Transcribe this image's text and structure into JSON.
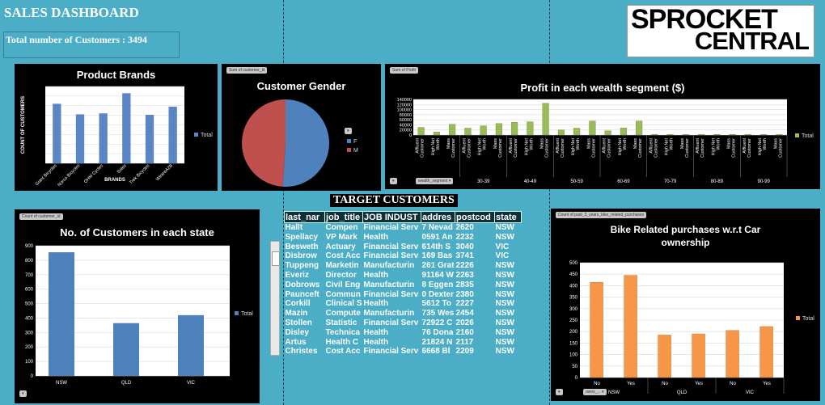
{
  "header": {
    "title": "SALES DASHBOARD",
    "total_customers": "Total number of Customers : 3494"
  },
  "logo": {
    "line1": "SPROCKET",
    "line2": "CENTRAL"
  },
  "brands_chart": {
    "tag": "",
    "title": "Product Brands",
    "legend": "Total",
    "chart_data": {
      "type": "bar",
      "title": "Product Brands",
      "xlabel": "BRANDS",
      "ylabel": "COUNT OF CUSTOMERS",
      "categories": [
        "Giant Bicycles",
        "Norco Bicycles",
        "OHM Cycles",
        "Solex",
        "Trek Bicycles",
        "WeareA2B"
      ],
      "values": [
        620,
        510,
        520,
        730,
        505,
        590
      ],
      "ylim": [
        0,
        800
      ],
      "series_name": "Total",
      "color": "#5b86c5"
    }
  },
  "gender_chart": {
    "tag": "Sum of customer_id",
    "title": "Customer  Gender",
    "filter": "",
    "chart_data": {
      "type": "pie",
      "title": "Customer  Gender",
      "categories": [
        "F",
        "M"
      ],
      "values": [
        51,
        49
      ],
      "colors": [
        "#4f81bd",
        "#c0504d"
      ]
    }
  },
  "profit_chart": {
    "tag": "Sum of Profit",
    "title": "Profit in each wealth segment ($)",
    "legend": "Total",
    "filter1": "",
    "filter2": "wealth_segment",
    "chart_data": {
      "type": "bar",
      "title": "Profit in each wealth segment ($)",
      "groups": [
        "20-29",
        "30-39",
        "40-49",
        "50-59",
        "60-69",
        "70-79",
        "80-89",
        "90-99"
      ],
      "segments": [
        "Affluent Customer",
        "High Net Worth",
        "Mass Customer"
      ],
      "values": [
        [
          30000,
          12000,
          42000
        ],
        [
          27000,
          36000,
          45000
        ],
        [
          50000,
          52000,
          125000
        ],
        [
          20000,
          27000,
          55000
        ],
        [
          17000,
          28000,
          55000
        ],
        [
          2000,
          2000,
          2000
        ],
        [
          2000,
          2000,
          2000
        ],
        [
          2000,
          2000,
          2000
        ]
      ],
      "yticks": [
        "0",
        "20000",
        "40000",
        "60000",
        "80000",
        "100000",
        "120000",
        "140000"
      ],
      "ylim": [
        0,
        140000
      ],
      "series_name": "Total",
      "color": "#9bbb59"
    }
  },
  "state_chart": {
    "tag": "Count of customer_id",
    "title": "No. of Customers  in each state",
    "legend": "Total",
    "filter": "",
    "chart_data": {
      "type": "bar",
      "title": "No. of Customers  in each state",
      "categories": [
        "NSW",
        "QLD",
        "VIC"
      ],
      "values": [
        855,
        365,
        420
      ],
      "ylim": [
        0,
        900
      ],
      "yticks": [
        "0",
        "100",
        "200",
        "300",
        "400",
        "500",
        "600",
        "700",
        "800",
        "900"
      ],
      "series_name": "Total",
      "color": "#4f81bd"
    }
  },
  "bike_chart": {
    "tag": "Count of past_3_years_bike_related_purchases",
    "title_line1": "Bike Related purchases w.r.t Car",
    "title_line2": "ownership",
    "legend": "Total",
    "filter1": "",
    "filter2": "owns_...",
    "chart_data": {
      "type": "bar",
      "title": "Bike Related purchases w.r.t Car ownership",
      "groups": [
        "NSW",
        "QLD",
        "VIC"
      ],
      "subcategories": [
        "No",
        "Yes"
      ],
      "values": [
        [
          415,
          445
        ],
        [
          185,
          190
        ],
        [
          205,
          222
        ]
      ],
      "ylim": [
        0,
        500
      ],
      "yticks": [
        "0",
        "50",
        "100",
        "150",
        "200",
        "250",
        "300",
        "350",
        "400",
        "450",
        "500"
      ],
      "series_name": "Total",
      "color": "#f79646"
    }
  },
  "target": {
    "title": "TARGET CUSTOMERS",
    "columns": [
      "last_nar",
      "job_title",
      "JOB INDUST",
      "addres",
      "postcod",
      "state"
    ],
    "rows": [
      [
        "Hallt",
        "Compen",
        "Financial Serv",
        "7 Nevad",
        "2620",
        "NSW"
      ],
      [
        "Spellacy",
        "VP Mark",
        "Health",
        "0591 An",
        "2232",
        "NSW"
      ],
      [
        "Besweth",
        "Actuary",
        "Financial Serv",
        "614th S",
        "3040",
        "VIC"
      ],
      [
        "Disbrow",
        "Cost Acc",
        "Financial Serv",
        "169 Bas",
        "3741",
        "VIC"
      ],
      [
        "Tuppeng",
        "Marketin",
        "Manufacturin",
        "261 Grat",
        "2226",
        "NSW"
      ],
      [
        "Everiz",
        "Director",
        "Health",
        "91164 W",
        "2263",
        "NSW"
      ],
      [
        "Dobrows",
        "Civil Eng",
        "Manufacturin",
        "8 Eggen",
        "2835",
        "NSW"
      ],
      [
        "Paunceft",
        "Commun",
        "Financial Serv",
        "0 Dexter",
        "2380",
        "NSW"
      ],
      [
        "Corkill",
        "Clinical S",
        "Health",
        "5612 To",
        "2227",
        "NSW"
      ],
      [
        "Mazin",
        "Compute",
        "Manufacturin",
        "735 Wes",
        "2454",
        "NSW"
      ],
      [
        "Stollen",
        "Statistic",
        "Financial Serv",
        "72922 C",
        "2026",
        "NSW"
      ],
      [
        "Disley",
        "Technica",
        "Health",
        "76 Dona",
        "2160",
        "NSW"
      ],
      [
        "Artus",
        "Health C",
        "Health",
        "21824 N",
        "2117",
        "NSW"
      ],
      [
        "Christes",
        "Cost Acc",
        "Financial Serv",
        "6668 Bl",
        "2209",
        "NSW"
      ]
    ]
  }
}
